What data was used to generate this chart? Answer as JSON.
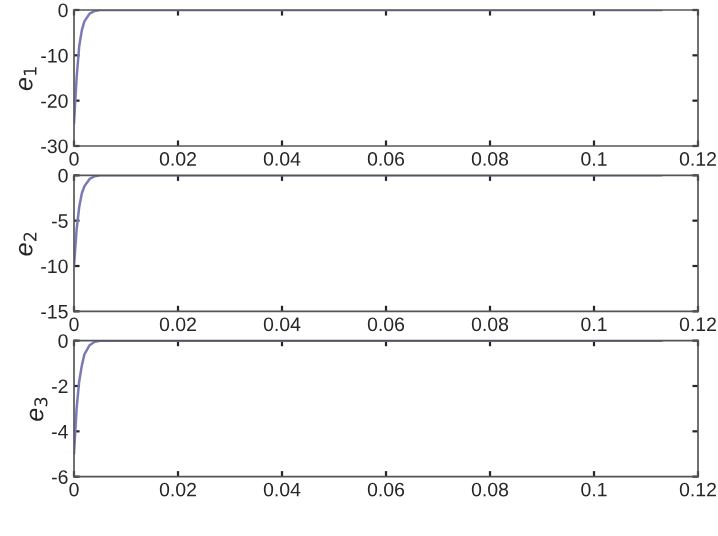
{
  "chart_data": [
    {
      "type": "line",
      "ylabel": "e$_{1}$",
      "x": [
        0,
        0.0005,
        0.001,
        0.0015,
        0.002,
        0.003,
        0.004,
        0.005,
        0.113
      ],
      "series": [
        {
          "color": "#7a7ab8",
          "values": [
            -25,
            -15,
            -8,
            -4.5,
            -2.5,
            -0.8,
            -0.2,
            0,
            0
          ]
        }
      ],
      "xlim": [
        0,
        0.12
      ],
      "xticks": [
        0,
        0.02,
        0.04,
        0.06,
        0.08,
        0.1,
        0.12
      ],
      "ylim": [
        -30,
        0
      ],
      "yticks": [
        -30,
        -20,
        -10,
        0
      ],
      "grid": false,
      "legend": false
    },
    {
      "type": "line",
      "ylabel": "e$_{2}$",
      "x": [
        0,
        0.0005,
        0.001,
        0.0015,
        0.002,
        0.003,
        0.004,
        0.005,
        0.113
      ],
      "series": [
        {
          "color": "#7a7ab8",
          "values": [
            -10,
            -6,
            -3.5,
            -2,
            -1.2,
            -0.4,
            -0.1,
            0,
            0
          ]
        }
      ],
      "xlim": [
        0,
        0.12
      ],
      "xticks": [
        0,
        0.02,
        0.04,
        0.06,
        0.08,
        0.1,
        0.12
      ],
      "ylim": [
        -15,
        0
      ],
      "yticks": [
        -15,
        -10,
        -5,
        0
      ],
      "grid": false,
      "legend": false
    },
    {
      "type": "line",
      "ylabel": "e$_{3}$",
      "x": [
        0,
        0.0005,
        0.001,
        0.0015,
        0.002,
        0.003,
        0.004,
        0.005,
        0.113
      ],
      "series": [
        {
          "color": "#7a7ab8",
          "values": [
            -5,
            -3,
            -1.8,
            -1.1,
            -0.6,
            -0.2,
            -0.05,
            0,
            0
          ]
        }
      ],
      "xlim": [
        0,
        0.12
      ],
      "xticks": [
        0,
        0.02,
        0.04,
        0.06,
        0.08,
        0.1,
        0.12
      ],
      "ylim": [
        -6,
        0
      ],
      "yticks": [
        -6,
        -4,
        -2,
        0
      ],
      "grid": false,
      "legend": false
    }
  ]
}
